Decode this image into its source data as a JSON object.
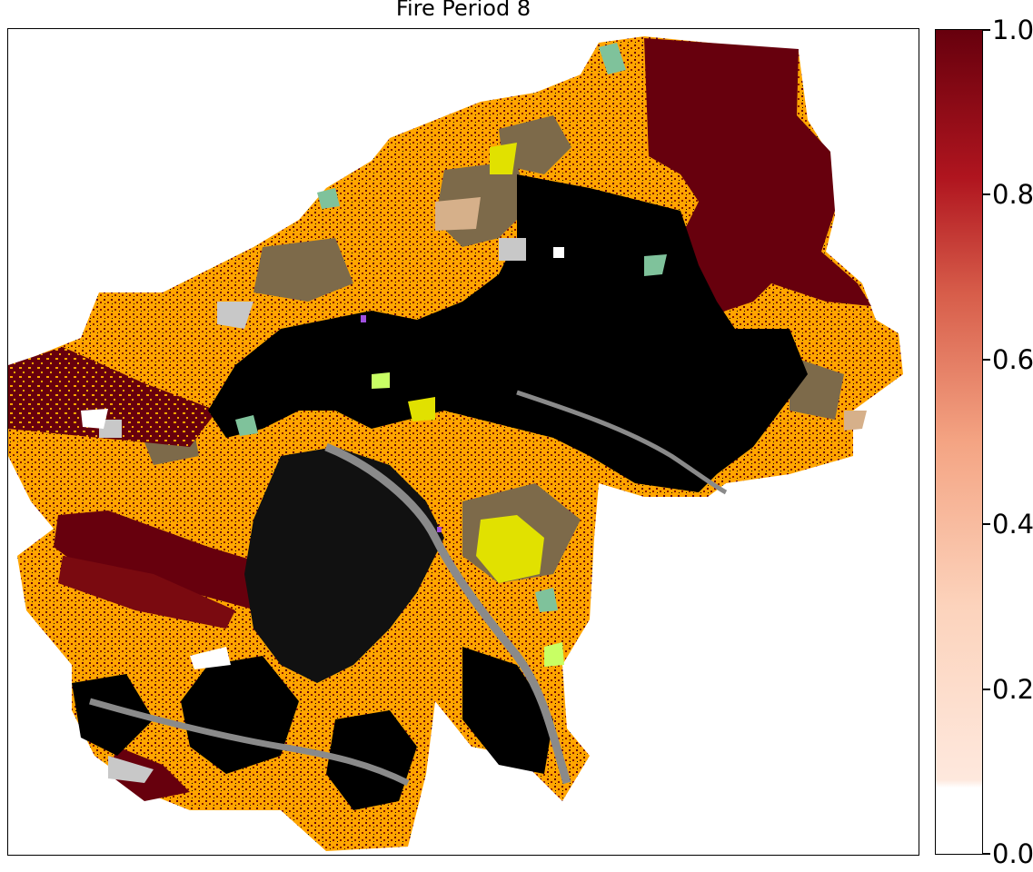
{
  "figure": {
    "title": "Fire Period 8"
  },
  "colorbar": {
    "colormap": "Reds",
    "range": [
      0.0,
      1.0
    ],
    "ticks": [
      {
        "value": 1.0,
        "label": "1.0"
      },
      {
        "value": 0.8,
        "label": "0.8"
      },
      {
        "value": 0.6,
        "label": "0.6"
      },
      {
        "value": 0.4,
        "label": "0.4"
      },
      {
        "value": 0.2,
        "label": "0.2"
      },
      {
        "value": 0.0,
        "label": "0.0"
      }
    ],
    "colors": {
      "low": "#ffffff",
      "mid_low": "#fcd3bc",
      "mid": "#f4a483",
      "mid_high": "#d75d4a",
      "high_mid": "#b0151f",
      "high": "#67000d"
    }
  },
  "map": {
    "palette": {
      "burned": "#67000d",
      "black_fuel": "#000000",
      "orange_fuel": "#ffa500",
      "brown_fuel": "#7d6a4a",
      "gray_fuel": "#8a8a8a",
      "light_gray": "#c8c8c8",
      "yellow": "#e1e100",
      "green_patch": "#7fc29b",
      "lime": "#c8ff64",
      "tan": "#d6b08a",
      "purple": "#a050e0"
    }
  }
}
